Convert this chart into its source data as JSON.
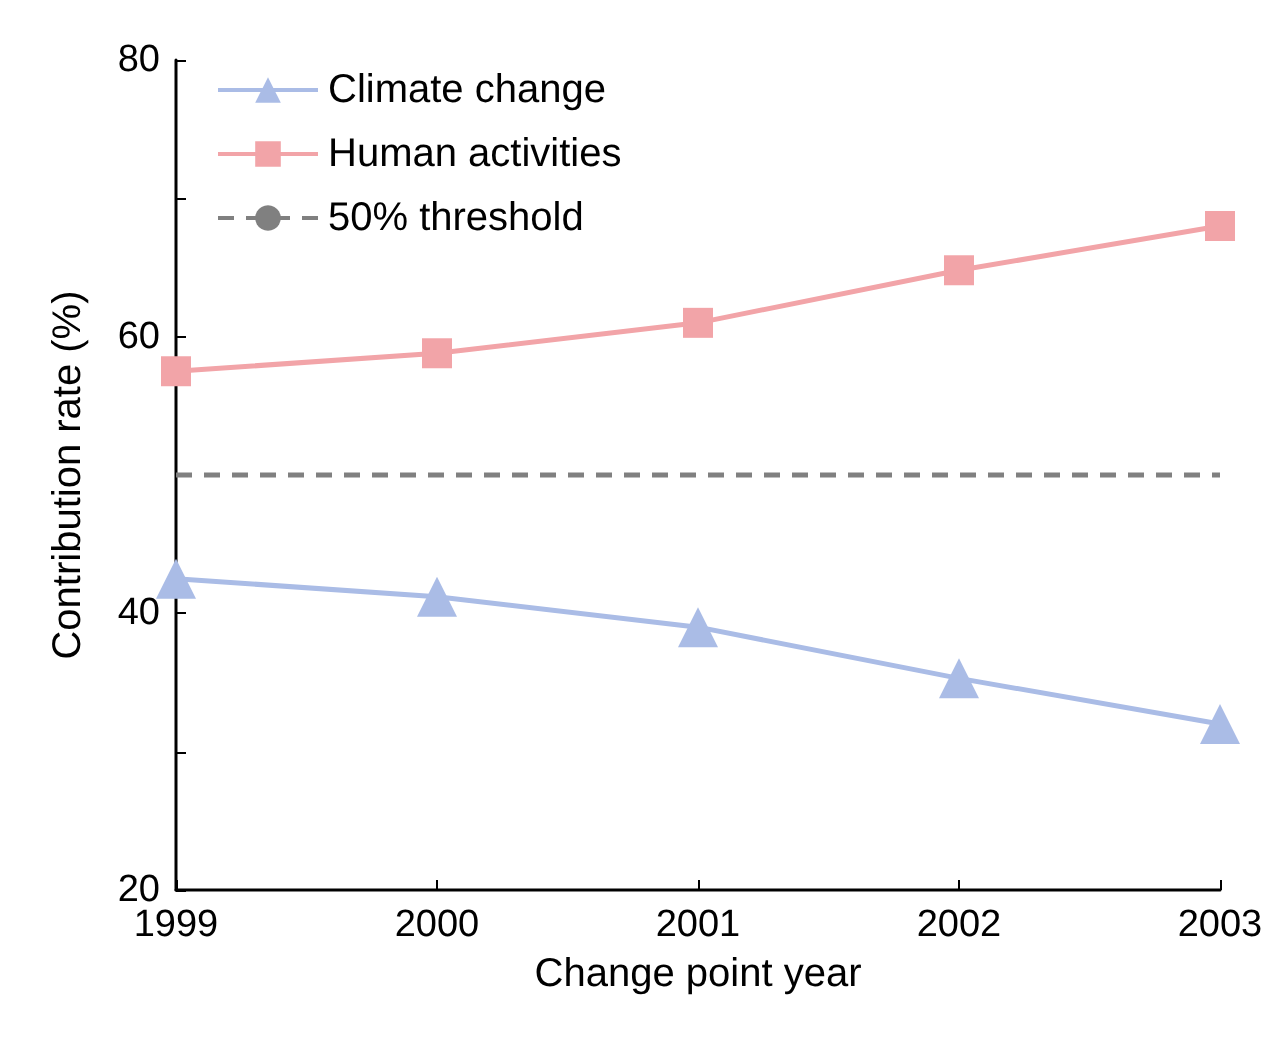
{
  "chart_data": {
    "type": "line",
    "xlabel": "Change point year",
    "ylabel": "Contribution rate (%)",
    "x": [
      1999,
      2000,
      2001,
      2002,
      2003
    ],
    "series": [
      {
        "name": "Climate change",
        "color": "#aabce6",
        "marker": "triangle",
        "values": [
          42.5,
          41.2,
          39,
          35.3,
          32
        ]
      },
      {
        "name": "Human activities",
        "color": "#f2a4a8",
        "marker": "square",
        "values": [
          57.5,
          58.8,
          61,
          64.8,
          68
        ]
      }
    ],
    "ref_lines": [
      {
        "axis": "y",
        "value": 50,
        "label": "50% threshold",
        "color": "#808080",
        "line_style": "dashed"
      }
    ],
    "xlim": [
      1999,
      2003
    ],
    "xticks": [
      1999,
      2000,
      2001,
      2002,
      2003
    ],
    "ylim": [
      20,
      80
    ],
    "yticks": [
      20,
      {
        "value": 30,
        "label": null
      },
      40,
      {
        "value": 50,
        "label": null
      },
      60,
      {
        "value": 70,
        "label": null
      },
      80
    ],
    "grid": false,
    "legend": "top left",
    "line_style": "solid"
  }
}
